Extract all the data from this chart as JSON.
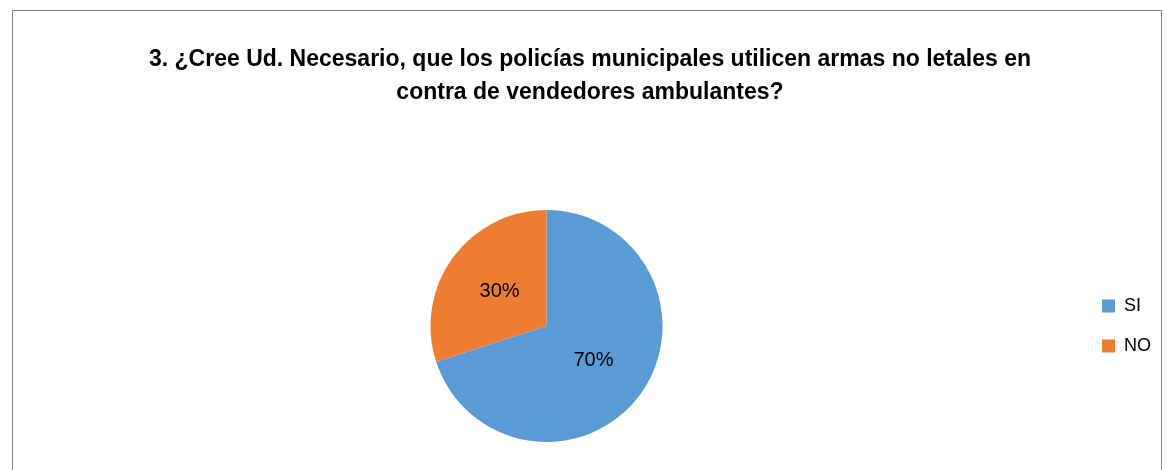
{
  "chart_data": {
    "type": "pie",
    "title": "3. ¿Cree Ud. Necesario, que los policías municipales utilicen armas no letales en contra de vendedores ambulantes?",
    "categories": [
      "SI",
      "NO"
    ],
    "values": [
      70,
      30
    ],
    "colors": [
      "#5b9bd5",
      "#ed7d31"
    ],
    "value_labels": [
      "70%",
      "30%"
    ],
    "legend": "right"
  }
}
